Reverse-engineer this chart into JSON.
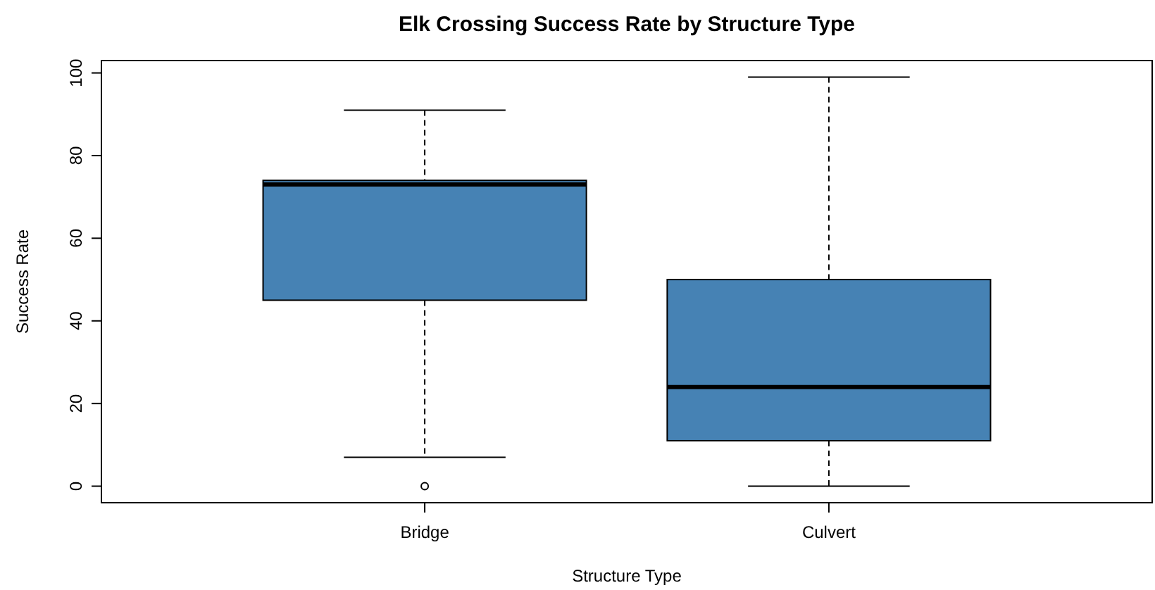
{
  "chart_data": {
    "type": "box",
    "title": "Elk Crossing Success Rate by Structure Type",
    "xlabel": "Structure Type",
    "ylabel": "Success Rate",
    "categories": [
      "Bridge",
      "Culvert"
    ],
    "color": "#4682b4",
    "boxes": [
      {
        "low": 7,
        "q1": 45,
        "median": 73,
        "q3": 74,
        "high": 91,
        "outliers": [
          0
        ]
      },
      {
        "low": 0,
        "q1": 11,
        "median": 24,
        "q3": 50,
        "high": 99
      }
    ],
    "ylim": [
      -4,
      103
    ],
    "yticks": [
      0,
      20,
      40,
      60,
      80,
      100
    ]
  }
}
